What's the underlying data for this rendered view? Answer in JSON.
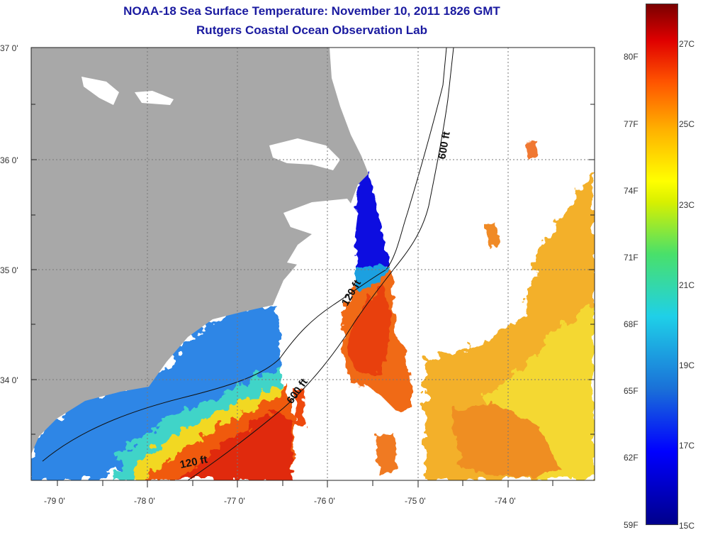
{
  "title": {
    "line1": "NOAA-18 Sea Surface Temperature:  November 10, 2011 1826 GMT",
    "line2": "Rutgers Coastal Ocean Observation Lab"
  },
  "axes": {
    "lat_labels": [
      "37 0'",
      "36 0'",
      "35 0'",
      "34 0'"
    ],
    "lon_labels": [
      "-79 0'",
      "-78 0'",
      "-77 0'",
      "-76 0'",
      "-75 0'",
      "-74 0'"
    ]
  },
  "contours": {
    "label_600_north": "600 ft",
    "label_120_mid": "120 ft",
    "label_600_south": "600 ft",
    "label_120_south": "120 ft"
  },
  "colorbar": {
    "fahrenheit": [
      "80F",
      "77F",
      "74F",
      "71F",
      "68F",
      "65F",
      "62F",
      "59F"
    ],
    "celsius": [
      "27C",
      "25C",
      "23C",
      "21C",
      "19C",
      "17C",
      "15C"
    ]
  },
  "colors": {
    "land": "#a8a8a8",
    "title": "#1a1aa0",
    "no_data": "#ffffff"
  }
}
